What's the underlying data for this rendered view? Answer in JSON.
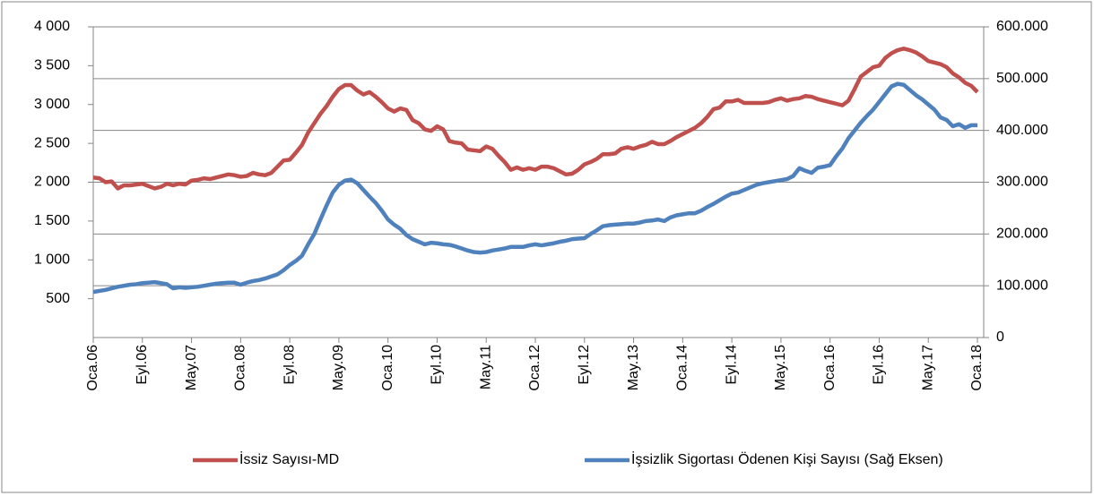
{
  "chart_data": {
    "type": "line",
    "categories": [
      "Oca.06",
      null,
      null,
      null,
      null,
      null,
      null,
      null,
      "Eyl.06",
      null,
      null,
      null,
      null,
      null,
      null,
      null,
      "May.07",
      null,
      null,
      null,
      null,
      null,
      null,
      null,
      "Oca.08",
      null,
      null,
      null,
      null,
      null,
      null,
      null,
      "Eyl.08",
      null,
      null,
      null,
      null,
      null,
      null,
      null,
      "May.09",
      null,
      null,
      null,
      null,
      null,
      null,
      null,
      "Oca.10",
      null,
      null,
      null,
      null,
      null,
      null,
      null,
      "Eyl.10",
      null,
      null,
      null,
      null,
      null,
      null,
      null,
      "May.11",
      null,
      null,
      null,
      null,
      null,
      null,
      null,
      "Oca.12",
      null,
      null,
      null,
      null,
      null,
      null,
      null,
      "Eyl.12",
      null,
      null,
      null,
      null,
      null,
      null,
      null,
      "May.13",
      null,
      null,
      null,
      null,
      null,
      null,
      null,
      "Oca.14",
      null,
      null,
      null,
      null,
      null,
      null,
      null,
      "Eyl.14",
      null,
      null,
      null,
      null,
      null,
      null,
      null,
      "May.15",
      null,
      null,
      null,
      null,
      null,
      null,
      null,
      "Oca.16",
      null,
      null,
      null,
      null,
      null,
      null,
      null,
      "Eyl.16",
      null,
      null,
      null,
      null,
      null,
      null,
      null,
      "May.17",
      null,
      null,
      null,
      null,
      null,
      null,
      null,
      "Oca.18"
    ],
    "series": [
      {
        "name": "İssiz Sayısı-MD",
        "color": "#c0504d",
        "values": [
          2060,
          2050,
          2000,
          2010,
          1920,
          1960,
          1960,
          1970,
          1980,
          1950,
          1920,
          1940,
          1980,
          1960,
          1980,
          1970,
          2020,
          2030,
          2050,
          2040,
          2060,
          2080,
          2100,
          2090,
          2070,
          2080,
          2120,
          2100,
          2090,
          2120,
          2200,
          2280,
          2290,
          2380,
          2480,
          2640,
          2760,
          2880,
          2980,
          3100,
          3200,
          3250,
          3250,
          3180,
          3130,
          3160,
          3100,
          3030,
          2950,
          2910,
          2950,
          2930,
          2800,
          2760,
          2680,
          2660,
          2720,
          2680,
          2530,
          2510,
          2500,
          2420,
          2410,
          2400,
          2460,
          2430,
          2340,
          2260,
          2160,
          2190,
          2160,
          2180,
          2160,
          2200,
          2200,
          2180,
          2140,
          2100,
          2110,
          2160,
          2230,
          2260,
          2300,
          2360,
          2360,
          2370,
          2430,
          2450,
          2430,
          2460,
          2480,
          2520,
          2490,
          2490,
          2530,
          2580,
          2620,
          2660,
          2700,
          2760,
          2840,
          2940,
          2960,
          3040,
          3040,
          3060,
          3020,
          3020,
          3020,
          3020,
          3030,
          3060,
          3080,
          3050,
          3070,
          3080,
          3110,
          3100,
          3070,
          3050,
          3030,
          3010,
          2990,
          3050,
          3200,
          3360,
          3420,
          3480,
          3500,
          3600,
          3660,
          3700,
          3720,
          3700,
          3670,
          3620,
          3560,
          3540,
          3520,
          3480,
          3400,
          3350,
          3280,
          3240,
          3160
        ]
      },
      {
        "name": "İşsizlik Sigortası Ödenen Kişi Sayısı (Sağ Eksen)",
        "color": "#4f81bd",
        "axis": "y2",
        "values": [
          88000,
          90000,
          92000,
          95000,
          98000,
          100000,
          102000,
          103000,
          105000,
          106000,
          107000,
          105000,
          103000,
          95000,
          97000,
          96000,
          97000,
          98000,
          100000,
          102000,
          104000,
          105000,
          106000,
          106000,
          102000,
          106000,
          109000,
          111000,
          114000,
          118000,
          122000,
          130000,
          140000,
          148000,
          158000,
          180000,
          200000,
          228000,
          255000,
          280000,
          295000,
          303000,
          305000,
          298000,
          285000,
          272000,
          260000,
          245000,
          228000,
          218000,
          210000,
          198000,
          190000,
          185000,
          180000,
          183000,
          182000,
          180000,
          179000,
          176000,
          172000,
          168000,
          165000,
          164000,
          165000,
          168000,
          170000,
          172000,
          175000,
          175000,
          175000,
          178000,
          180000,
          178000,
          180000,
          182000,
          185000,
          187000,
          190000,
          191000,
          192000,
          200000,
          207000,
          215000,
          217000,
          218000,
          219000,
          220000,
          220000,
          222000,
          225000,
          226000,
          228000,
          225000,
          232000,
          236000,
          238000,
          240000,
          240000,
          245000,
          252000,
          258000,
          265000,
          272000,
          278000,
          280000,
          285000,
          290000,
          295000,
          298000,
          300000,
          302000,
          304000,
          306000,
          312000,
          327000,
          322000,
          318000,
          328000,
          330000,
          333000,
          350000,
          365000,
          385000,
          400000,
          415000,
          428000,
          440000,
          455000,
          470000,
          485000,
          490000,
          488000,
          478000,
          468000,
          460000,
          450000,
          440000,
          425000,
          420000,
          408000,
          412000,
          405000,
          410000,
          410000
        ]
      }
    ],
    "ylim": [
      0,
      4000
    ],
    "yticks": [
      500,
      {
        "value": 1000,
        "label": "1 000"
      },
      {
        "value": 1500,
        "label": "1 500"
      },
      {
        "value": 2000,
        "label": "2 000"
      },
      {
        "value": 2500,
        "label": "2 500"
      },
      {
        "value": 3000,
        "label": "3 000"
      },
      {
        "value": 3500,
        "label": "3 500"
      },
      {
        "value": 4000,
        "label": "4 000"
      }
    ],
    "y2lim": [
      0,
      600000
    ],
    "y2ticks": [
      0,
      {
        "value": 100000,
        "label": "100.000"
      },
      {
        "value": 200000,
        "label": "200.000"
      },
      {
        "value": 300000,
        "label": "300.000"
      },
      {
        "value": 400000,
        "label": "400.000"
      },
      {
        "value": 500000,
        "label": "500.000"
      },
      {
        "value": 600000,
        "label": "600.000"
      }
    ],
    "grid": true
  }
}
